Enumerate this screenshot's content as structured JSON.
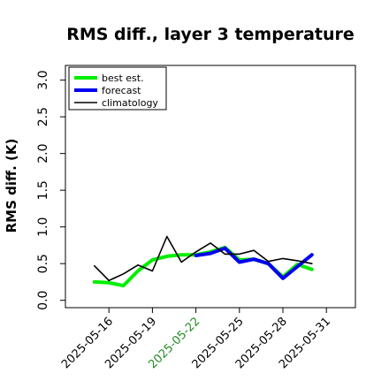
{
  "chart_data": {
    "type": "line",
    "title": "RMS diff., layer 3 temperature",
    "ylabel": "RMS diff. (K)",
    "xlabel": "",
    "ylim": [
      -0.1,
      3.2
    ],
    "yticks": [
      "0.0",
      "0.5",
      "1.0",
      "1.5",
      "2.0",
      "2.5",
      "3.0"
    ],
    "xlim": [
      "2025-05-13",
      "2025-06-02"
    ],
    "xticks": [
      {
        "date": "2025-05-16",
        "label": "2025-05-16",
        "color": "#000000"
      },
      {
        "date": "2025-05-19",
        "label": "2025-05-19",
        "color": "#000000"
      },
      {
        "date": "2025-05-22",
        "label": "2025-05-22",
        "color": "#228B22"
      },
      {
        "date": "2025-05-25",
        "label": "2025-05-25",
        "color": "#000000"
      },
      {
        "date": "2025-05-28",
        "label": "2025-05-28",
        "color": "#000000"
      },
      {
        "date": "2025-05-31",
        "label": "2025-05-31",
        "color": "#000000"
      }
    ],
    "grid": false,
    "legend_position": "top-left",
    "series": [
      {
        "name": "best est.",
        "color": "#00ee00",
        "line_width": "thick",
        "x": [
          "2025-05-15",
          "2025-05-16",
          "2025-05-17",
          "2025-05-18",
          "2025-05-19",
          "2025-05-20",
          "2025-05-21",
          "2025-05-22",
          "2025-05-23",
          "2025-05-24",
          "2025-05-25",
          "2025-05-26",
          "2025-05-27",
          "2025-05-28",
          "2025-05-29",
          "2025-05-30"
        ],
        "values": [
          0.25,
          0.24,
          0.2,
          0.4,
          0.55,
          0.6,
          0.62,
          0.62,
          0.66,
          0.72,
          0.55,
          0.56,
          0.5,
          0.32,
          0.49,
          0.42
        ]
      },
      {
        "name": "forecast",
        "color": "#0000ee",
        "line_width": "thick",
        "x": [
          "2025-05-22",
          "2025-05-23",
          "2025-05-24",
          "2025-05-25",
          "2025-05-26",
          "2025-05-27",
          "2025-05-28",
          "2025-05-29",
          "2025-05-30"
        ],
        "values": [
          0.61,
          0.64,
          0.71,
          0.52,
          0.56,
          0.5,
          0.3,
          0.46,
          0.62
        ]
      },
      {
        "name": "climatology",
        "color": "#000000",
        "line_width": "thin",
        "x": [
          "2025-05-15",
          "2025-05-16",
          "2025-05-17",
          "2025-05-18",
          "2025-05-19",
          "2025-05-20",
          "2025-05-21",
          "2025-05-22",
          "2025-05-23",
          "2025-05-24",
          "2025-05-25",
          "2025-05-26",
          "2025-05-27",
          "2025-05-28",
          "2025-05-29",
          "2025-05-30"
        ],
        "values": [
          0.47,
          0.27,
          0.36,
          0.48,
          0.4,
          0.87,
          0.52,
          0.66,
          0.78,
          0.63,
          0.63,
          0.68,
          0.53,
          0.57,
          0.54,
          0.5
        ]
      }
    ]
  }
}
